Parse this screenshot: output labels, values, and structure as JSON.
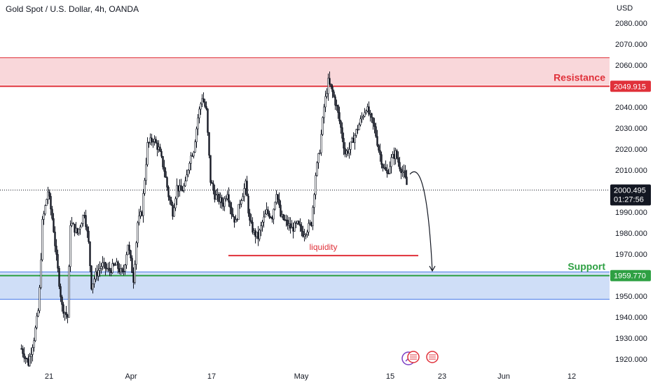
{
  "header": {
    "title": "Gold Spot / U.S. Dollar, 4h, OANDA",
    "unit": "USD"
  },
  "colors": {
    "up": "#ffffff",
    "down": "#131722",
    "wick": "#131722",
    "resistance": "#e0313a",
    "support": "#2ea043",
    "support_zone": "#4a7ce8",
    "label_dark": "#131722"
  },
  "chart_data": {
    "type": "candlestick",
    "title": "Gold Spot / U.S. Dollar, 4h, OANDA",
    "ylabel": "USD",
    "ylim": [
      1915,
      2085
    ],
    "yticks": [
      2080,
      2070,
      2060,
      2050,
      2040,
      2030,
      2020,
      2010,
      2000,
      1990,
      1980,
      1970,
      1960,
      1950,
      1940,
      1930,
      1920
    ],
    "ytick_labels": [
      "2080.000",
      "2070.000",
      "2060.000",
      "2050.000",
      "2040.000",
      "2030.000",
      "2020.000",
      "2010.000",
      "2000.000",
      "1990.000",
      "1980.000",
      "1970.000",
      "1960.000",
      "1950.000",
      "1940.000",
      "1930.000",
      "1920.000"
    ],
    "x_tick_labels": [
      "21",
      "Apr",
      "17",
      "May",
      "15",
      "23",
      "Jun",
      "12"
    ],
    "x_tick_positions": [
      70,
      187,
      302,
      430,
      557,
      631,
      719,
      816
    ],
    "price_path": [
      [
        30,
        1925
      ],
      [
        40,
        1918
      ],
      [
        48,
        1930
      ],
      [
        55,
        1945
      ],
      [
        60,
        1985
      ],
      [
        68,
        2000
      ],
      [
        75,
        1985
      ],
      [
        80,
        1968
      ],
      [
        88,
        1945
      ],
      [
        96,
        1940
      ],
      [
        100,
        1985
      ],
      [
        110,
        1980
      ],
      [
        120,
        1990
      ],
      [
        126,
        1975
      ],
      [
        130,
        1955
      ],
      [
        136,
        1960
      ],
      [
        145,
        1965
      ],
      [
        155,
        1962
      ],
      [
        165,
        1965
      ],
      [
        175,
        1960
      ],
      [
        182,
        1975
      ],
      [
        190,
        1958
      ],
      [
        196,
        1985
      ],
      [
        202,
        1990
      ],
      [
        210,
        2022
      ],
      [
        218,
        2025
      ],
      [
        226,
        2020
      ],
      [
        234,
        2010
      ],
      [
        240,
        1998
      ],
      [
        246,
        1990
      ],
      [
        252,
        2002
      ],
      [
        258,
        2000
      ],
      [
        264,
        2003
      ],
      [
        270,
        2015
      ],
      [
        276,
        2020
      ],
      [
        282,
        2035
      ],
      [
        288,
        2045
      ],
      [
        294,
        2038
      ],
      [
        300,
        2005
      ],
      [
        306,
        1998
      ],
      [
        312,
        1996
      ],
      [
        318,
        1994
      ],
      [
        324,
        2000
      ],
      [
        330,
        1990
      ],
      [
        336,
        1985
      ],
      [
        342,
        1995
      ],
      [
        350,
        2003
      ],
      [
        356,
        1985
      ],
      [
        362,
        1980
      ],
      [
        368,
        1978
      ],
      [
        374,
        1985
      ],
      [
        380,
        1990
      ],
      [
        388,
        1988
      ],
      [
        394,
        2000
      ],
      [
        400,
        1988
      ],
      [
        408,
        1985
      ],
      [
        416,
        1982
      ],
      [
        424,
        1984
      ],
      [
        432,
        1980
      ],
      [
        438,
        1982
      ],
      [
        444,
        1985
      ],
      [
        450,
        2008
      ],
      [
        456,
        2020
      ],
      [
        462,
        2040
      ],
      [
        468,
        2052
      ],
      [
        474,
        2047
      ],
      [
        480,
        2040
      ],
      [
        486,
        2030
      ],
      [
        492,
        2018
      ],
      [
        498,
        2020
      ],
      [
        504,
        2025
      ],
      [
        510,
        2030
      ],
      [
        516,
        2035
      ],
      [
        522,
        2040
      ],
      [
        528,
        2035
      ],
      [
        534,
        2030
      ],
      [
        540,
        2020
      ],
      [
        546,
        2012
      ],
      [
        552,
        2008
      ],
      [
        558,
        2015
      ],
      [
        564,
        2018
      ],
      [
        570,
        2012
      ],
      [
        576,
        2008
      ],
      [
        580,
        2003
      ]
    ],
    "last_price": {
      "value": 2000.495,
      "label": "2000.495",
      "countdown": "01:27:56"
    },
    "resistance": {
      "label": "Resistance",
      "zone": [
        2050.5,
        2063.5
      ],
      "level": 2049.915,
      "level_label": "2049.915"
    },
    "support": {
      "label": "Support",
      "zone": [
        1948.5,
        1961.5
      ],
      "level": 1959.77,
      "level_label": "1959.770"
    },
    "annotations": [
      {
        "type": "hline",
        "label": "liquidity",
        "y": 1969.3,
        "x_start": 326,
        "x_end": 597
      },
      {
        "type": "arrow",
        "label": "",
        "from": [
          585,
          2008
        ],
        "to": [
          617,
          1962
        ]
      }
    ]
  }
}
